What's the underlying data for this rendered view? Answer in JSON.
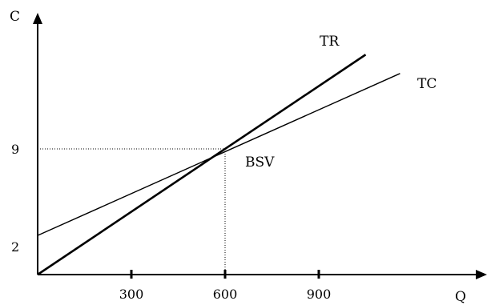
{
  "chart_data": {
    "type": "line",
    "xlabel": "Q",
    "ylabel": "C",
    "xlim": [
      0,
      1400
    ],
    "ylim": [
      0,
      16.6
    ],
    "x_ticks": [
      "300",
      "600",
      "900"
    ],
    "y_ticks": [
      "2",
      "9"
    ],
    "series": [
      {
        "name": "TR",
        "x": [
          0,
          1050
        ],
        "y": [
          0,
          15.75
        ]
      },
      {
        "name": "TC",
        "x": [
          0,
          1160
        ],
        "y": [
          2.8,
          14.4
        ]
      }
    ],
    "annotations": [
      {
        "text": "BSV",
        "x": 600,
        "y": 9
      }
    ],
    "guides": {
      "x": 600,
      "y": 9
    }
  }
}
